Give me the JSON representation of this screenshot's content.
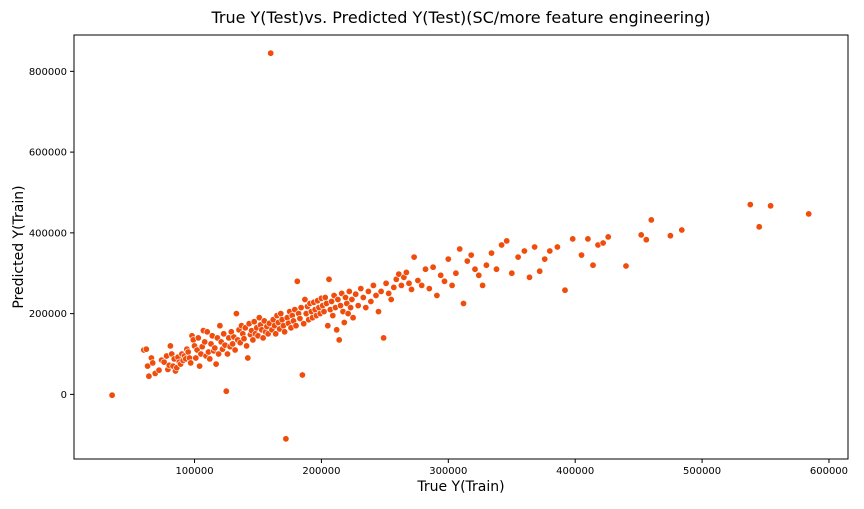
{
  "chart_data": {
    "type": "scatter",
    "title": "True Y(Test)vs. Predicted Y(Test)(SC/more feature engineering)",
    "xlabel": "True Y(Train)",
    "ylabel": "Predicted Y(Train)",
    "xlim": [
      5000,
      615000
    ],
    "ylim": [
      -160000,
      890000
    ],
    "xticks": [
      100000,
      200000,
      300000,
      400000,
      500000,
      600000
    ],
    "yticks": [
      0,
      200000,
      400000,
      600000,
      800000
    ],
    "grid": false,
    "legend": "none",
    "marker_color": "#f04c0c",
    "marker_edge_color": "#ffffff",
    "points": [
      [
        35000,
        -2000
      ],
      [
        60000,
        110000
      ],
      [
        62000,
        112000
      ],
      [
        63000,
        70000
      ],
      [
        64000,
        45000
      ],
      [
        66000,
        90000
      ],
      [
        67000,
        78000
      ],
      [
        69000,
        52000
      ],
      [
        72000,
        60000
      ],
      [
        74000,
        85000
      ],
      [
        76000,
        80000
      ],
      [
        78000,
        95000
      ],
      [
        79000,
        62000
      ],
      [
        80000,
        72000
      ],
      [
        81000,
        120000
      ],
      [
        82000,
        100000
      ],
      [
        83000,
        70000
      ],
      [
        84000,
        88000
      ],
      [
        85000,
        58000
      ],
      [
        86000,
        66000
      ],
      [
        87000,
        92000
      ],
      [
        88000,
        80000
      ],
      [
        89000,
        75000
      ],
      [
        90000,
        100000
      ],
      [
        91000,
        84000
      ],
      [
        92000,
        95000
      ],
      [
        93000,
        88000
      ],
      [
        94000,
        112000
      ],
      [
        95000,
        105000
      ],
      [
        96000,
        90000
      ],
      [
        97000,
        78000
      ],
      [
        98000,
        145000
      ],
      [
        99000,
        135000
      ],
      [
        100000,
        120000
      ],
      [
        101000,
        90000
      ],
      [
        102000,
        110000
      ],
      [
        103000,
        140000
      ],
      [
        104000,
        70000
      ],
      [
        105000,
        100000
      ],
      [
        106000,
        118000
      ],
      [
        107000,
        158000
      ],
      [
        108000,
        130000
      ],
      [
        109000,
        95000
      ],
      [
        110000,
        155000
      ],
      [
        111000,
        105000
      ],
      [
        112000,
        88000
      ],
      [
        113000,
        125000
      ],
      [
        114000,
        145000
      ],
      [
        115000,
        108000
      ],
      [
        116000,
        115000
      ],
      [
        117000,
        75000
      ],
      [
        118000,
        140000
      ],
      [
        119000,
        100000
      ],
      [
        120000,
        170000
      ],
      [
        121000,
        130000
      ],
      [
        122000,
        112000
      ],
      [
        123000,
        150000
      ],
      [
        124000,
        122000
      ],
      [
        125000,
        8000
      ],
      [
        126000,
        100000
      ],
      [
        127000,
        140000
      ],
      [
        128000,
        118000
      ],
      [
        129000,
        155000
      ],
      [
        130000,
        125000
      ],
      [
        131000,
        142000
      ],
      [
        132000,
        110000
      ],
      [
        133000,
        200000
      ],
      [
        134000,
        135000
      ],
      [
        135000,
        160000
      ],
      [
        136000,
        128000
      ],
      [
        137000,
        170000
      ],
      [
        138000,
        150000
      ],
      [
        139000,
        138000
      ],
      [
        140000,
        165000
      ],
      [
        141000,
        120000
      ],
      [
        142000,
        90000
      ],
      [
        143000,
        175000
      ],
      [
        144000,
        148000
      ],
      [
        145000,
        158000
      ],
      [
        146000,
        135000
      ],
      [
        147000,
        180000
      ],
      [
        148000,
        150000
      ],
      [
        149000,
        165000
      ],
      [
        150000,
        145000
      ],
      [
        151000,
        190000
      ],
      [
        152000,
        172000
      ],
      [
        153000,
        160000
      ],
      [
        154000,
        140000
      ],
      [
        155000,
        182000
      ],
      [
        156000,
        155000
      ],
      [
        157000,
        168000
      ],
      [
        158000,
        150000
      ],
      [
        159000,
        176000
      ],
      [
        160000,
        845000
      ],
      [
        161000,
        160000
      ],
      [
        162000,
        185000
      ],
      [
        163000,
        170000
      ],
      [
        164000,
        150000
      ],
      [
        165000,
        195000
      ],
      [
        166000,
        178000
      ],
      [
        167000,
        162000
      ],
      [
        168000,
        200000
      ],
      [
        169000,
        185000
      ],
      [
        170000,
        170000
      ],
      [
        171000,
        155000
      ],
      [
        172000,
        -110000
      ],
      [
        173000,
        190000
      ],
      [
        174000,
        176000
      ],
      [
        175000,
        205000
      ],
      [
        176000,
        165000
      ],
      [
        177000,
        195000
      ],
      [
        178000,
        182000
      ],
      [
        179000,
        210000
      ],
      [
        180000,
        170000
      ],
      [
        181000,
        280000
      ],
      [
        182000,
        200000
      ],
      [
        183000,
        188000
      ],
      [
        184000,
        215000
      ],
      [
        185000,
        48000
      ],
      [
        186000,
        175000
      ],
      [
        187000,
        235000
      ],
      [
        188000,
        200000
      ],
      [
        189000,
        218000
      ],
      [
        190000,
        185000
      ],
      [
        191000,
        225000
      ],
      [
        192000,
        205000
      ],
      [
        193000,
        190000
      ],
      [
        194000,
        228000
      ],
      [
        195000,
        210000
      ],
      [
        196000,
        195000
      ],
      [
        197000,
        232000
      ],
      [
        198000,
        215000
      ],
      [
        199000,
        200000
      ],
      [
        200000,
        238000
      ],
      [
        201000,
        220000
      ],
      [
        202000,
        205000
      ],
      [
        203000,
        240000
      ],
      [
        204000,
        225000
      ],
      [
        205000,
        170000
      ],
      [
        206000,
        285000
      ],
      [
        207000,
        210000
      ],
      [
        208000,
        230000
      ],
      [
        209000,
        195000
      ],
      [
        210000,
        245000
      ],
      [
        211000,
        215000
      ],
      [
        212000,
        160000
      ],
      [
        213000,
        235000
      ],
      [
        214000,
        135000
      ],
      [
        215000,
        220000
      ],
      [
        216000,
        250000
      ],
      [
        217000,
        205000
      ],
      [
        218000,
        178000
      ],
      [
        219000,
        240000
      ],
      [
        220000,
        225000
      ],
      [
        221000,
        200000
      ],
      [
        222000,
        255000
      ],
      [
        223000,
        215000
      ],
      [
        224000,
        235000
      ],
      [
        225000,
        190000
      ],
      [
        227000,
        248000
      ],
      [
        229000,
        220000
      ],
      [
        231000,
        262000
      ],
      [
        233000,
        240000
      ],
      [
        235000,
        215000
      ],
      [
        237000,
        255000
      ],
      [
        239000,
        230000
      ],
      [
        241000,
        270000
      ],
      [
        243000,
        245000
      ],
      [
        245000,
        205000
      ],
      [
        247000,
        255000
      ],
      [
        249000,
        140000
      ],
      [
        251000,
        275000
      ],
      [
        253000,
        250000
      ],
      [
        255000,
        235000
      ],
      [
        257000,
        265000
      ],
      [
        259000,
        285000
      ],
      [
        261000,
        298000
      ],
      [
        263000,
        270000
      ],
      [
        265000,
        290000
      ],
      [
        267000,
        302000
      ],
      [
        269000,
        275000
      ],
      [
        271000,
        260000
      ],
      [
        273000,
        340000
      ],
      [
        276000,
        282000
      ],
      [
        279000,
        270000
      ],
      [
        282000,
        310000
      ],
      [
        285000,
        262000
      ],
      [
        288000,
        315000
      ],
      [
        291000,
        245000
      ],
      [
        294000,
        295000
      ],
      [
        297000,
        280000
      ],
      [
        300000,
        335000
      ],
      [
        303000,
        270000
      ],
      [
        306000,
        300000
      ],
      [
        309000,
        360000
      ],
      [
        312000,
        225000
      ],
      [
        315000,
        330000
      ],
      [
        318000,
        345000
      ],
      [
        321000,
        310000
      ],
      [
        324000,
        295000
      ],
      [
        327000,
        270000
      ],
      [
        330000,
        320000
      ],
      [
        334000,
        350000
      ],
      [
        338000,
        310000
      ],
      [
        342000,
        370000
      ],
      [
        346000,
        380000
      ],
      [
        350000,
        300000
      ],
      [
        355000,
        340000
      ],
      [
        360000,
        355000
      ],
      [
        364000,
        290000
      ],
      [
        368000,
        365000
      ],
      [
        372000,
        305000
      ],
      [
        376000,
        335000
      ],
      [
        380000,
        355000
      ],
      [
        386000,
        365000
      ],
      [
        392000,
        258000
      ],
      [
        398000,
        385000
      ],
      [
        405000,
        345000
      ],
      [
        410000,
        385000
      ],
      [
        414000,
        320000
      ],
      [
        418000,
        370000
      ],
      [
        422000,
        375000
      ],
      [
        426000,
        390000
      ],
      [
        440000,
        318000
      ],
      [
        452000,
        395000
      ],
      [
        456000,
        383000
      ],
      [
        460000,
        432000
      ],
      [
        475000,
        393000
      ],
      [
        484000,
        407000
      ],
      [
        538000,
        470000
      ],
      [
        545000,
        415000
      ],
      [
        554000,
        467000
      ],
      [
        584000,
        447000
      ]
    ]
  }
}
